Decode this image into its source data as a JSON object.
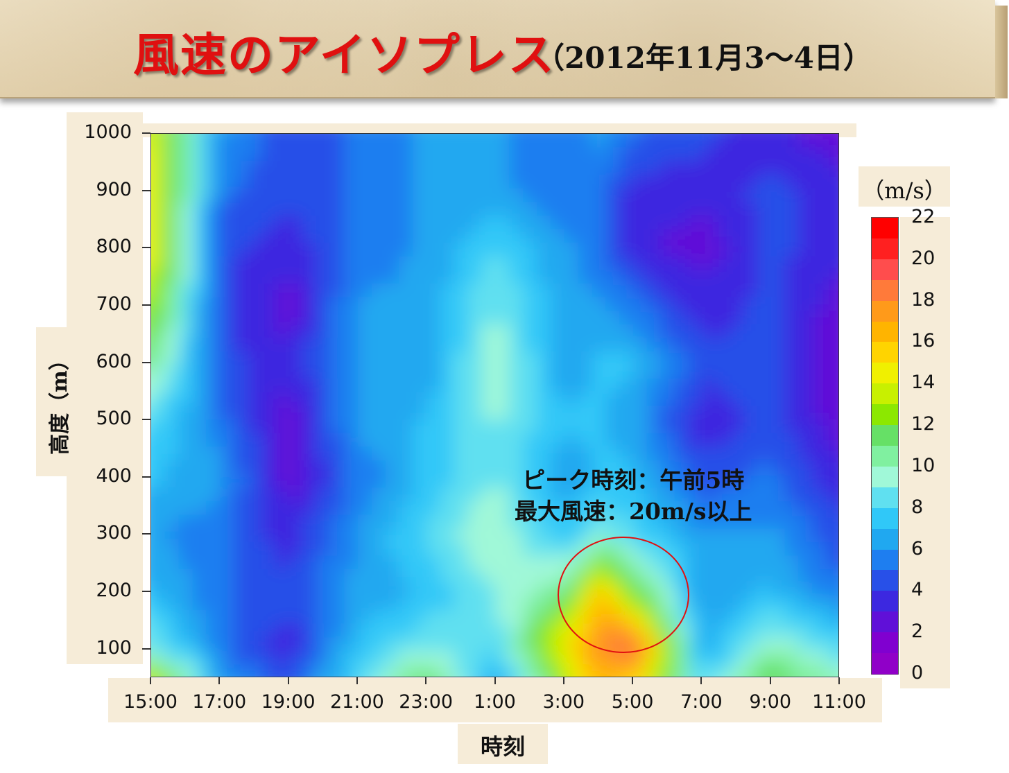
{
  "title": {
    "main": "風速のアイソプレス",
    "sub": "（2012年11月3～4日）"
  },
  "annotation": {
    "line1": "ピーク時刻：午前5時",
    "line2": "最大風速：20m/s以上"
  },
  "colorbar": {
    "unit": "（m/s）",
    "ticks": [
      "22",
      "20",
      "18",
      "16",
      "14",
      "12",
      "10",
      "8",
      "6",
      "4",
      "2",
      "0"
    ],
    "colors": [
      "#ff0000",
      "#ff2020",
      "#ff4d4d",
      "#ff7a3a",
      "#ff9a1a",
      "#ffb400",
      "#ffd400",
      "#f0f000",
      "#c8f000",
      "#8ce800",
      "#66e066",
      "#80f0a0",
      "#a0f8d8",
      "#60e0f0",
      "#30c8f8",
      "#20a8f0",
      "#1e7ef0",
      "#2850e8",
      "#3c28e0",
      "#6010d8",
      "#8000d0",
      "#9000c8"
    ]
  },
  "chart_data": {
    "type": "heatmap",
    "title": "風速のアイソプレス",
    "xlabel": "時刻",
    "ylabel": "高度（m）",
    "unit": "m/s",
    "x_ticks": [
      "15:00",
      "17:00",
      "19:00",
      "21:00",
      "23:00",
      "1:00",
      "3:00",
      "5:00",
      "7:00",
      "9:00",
      "11:00"
    ],
    "y_ticks": [
      "1000",
      "900",
      "800",
      "700",
      "600",
      "500",
      "400",
      "300",
      "200",
      "100"
    ],
    "y_range": [
      50,
      1000
    ],
    "value_range": [
      0,
      22
    ],
    "x_hours": [
      0,
      2,
      4,
      6,
      8,
      10,
      12,
      13,
      14,
      16,
      18,
      20
    ],
    "y_levels": [
      50,
      100,
      200,
      300,
      400,
      500,
      600,
      700,
      800,
      900,
      1000
    ],
    "values": [
      [
        14,
        6,
        4,
        8,
        12,
        6,
        13,
        17,
        16,
        8,
        12,
        10
      ],
      [
        9,
        5,
        3,
        7,
        9,
        8,
        15,
        18,
        20,
        6,
        10,
        8
      ],
      [
        7,
        5,
        4,
        6,
        7,
        9,
        11,
        16,
        12,
        6,
        7,
        5
      ],
      [
        6,
        5,
        3,
        6,
        8,
        10,
        7,
        9,
        8,
        6,
        6,
        4
      ],
      [
        7,
        6,
        2,
        5,
        7,
        9,
        6,
        7,
        7,
        4,
        5,
        3
      ],
      [
        8,
        5,
        2,
        6,
        7,
        9,
        7,
        7,
        6,
        3,
        4,
        2
      ],
      [
        11,
        4,
        3,
        6,
        6,
        10,
        6,
        7,
        7,
        4,
        4,
        2
      ],
      [
        13,
        4,
        2,
        6,
        6,
        9,
        6,
        6,
        5,
        3,
        4,
        2
      ],
      [
        15,
        4,
        3,
        5,
        6,
        8,
        6,
        5,
        3,
        2,
        4,
        3
      ],
      [
        15,
        5,
        4,
        5,
        6,
        6,
        5,
        5,
        3,
        3,
        4,
        3
      ],
      [
        14,
        6,
        4,
        5,
        6,
        6,
        5,
        6,
        5,
        4,
        3,
        2
      ]
    ],
    "peak": {
      "time": "5:00",
      "height_m": 130,
      "value_min": 20
    }
  }
}
